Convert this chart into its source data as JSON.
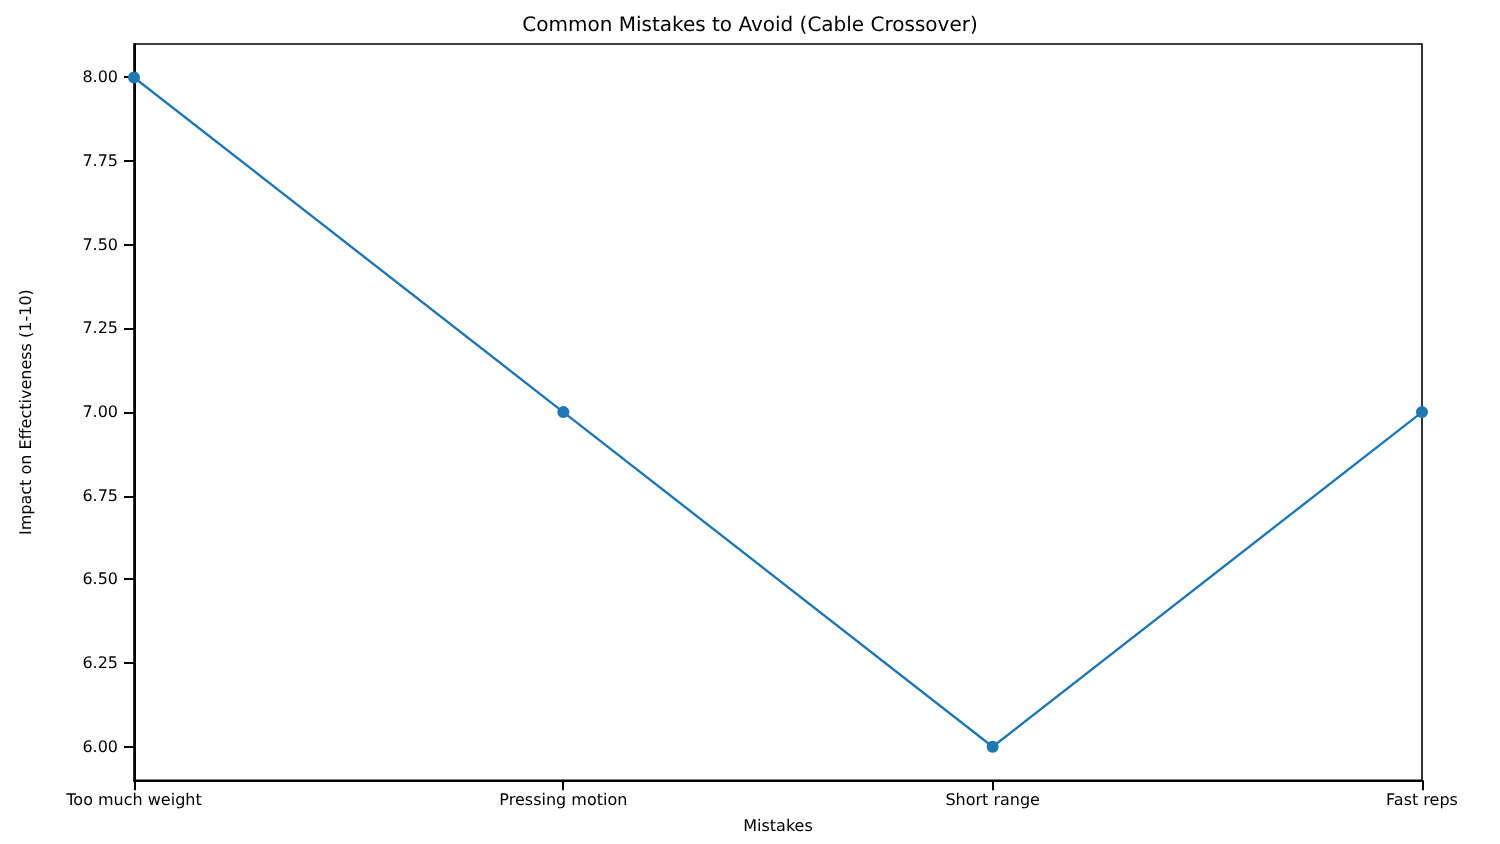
{
  "chart_data": {
    "type": "line",
    "title": "Common Mistakes to Avoid (Cable Crossover)",
    "xlabel": "Mistakes",
    "ylabel": "Impact on Effectiveness (1-10)",
    "categories": [
      "Too much weight",
      "Pressing motion",
      "Short range",
      "Fast reps"
    ],
    "series": [
      {
        "color": "#1f77b4",
        "values": [
          8,
          7,
          6,
          7
        ]
      }
    ],
    "ylim": [
      5.9,
      8.1
    ],
    "yticks": [
      {
        "value": 6,
        "label": "6.00"
      },
      {
        "value": 6.25,
        "label": "6.25"
      },
      {
        "value": 6.5,
        "label": "6.50"
      },
      {
        "value": 6.75,
        "label": "6.75"
      },
      {
        "value": 7,
        "label": "7.00"
      },
      {
        "value": 7.25,
        "label": "7.25"
      },
      {
        "value": 7.5,
        "label": "7.50"
      },
      {
        "value": 7.75,
        "label": "7.75"
      },
      {
        "value": 8,
        "label": "8.00"
      }
    ],
    "marker": "circle",
    "grid": false
  }
}
